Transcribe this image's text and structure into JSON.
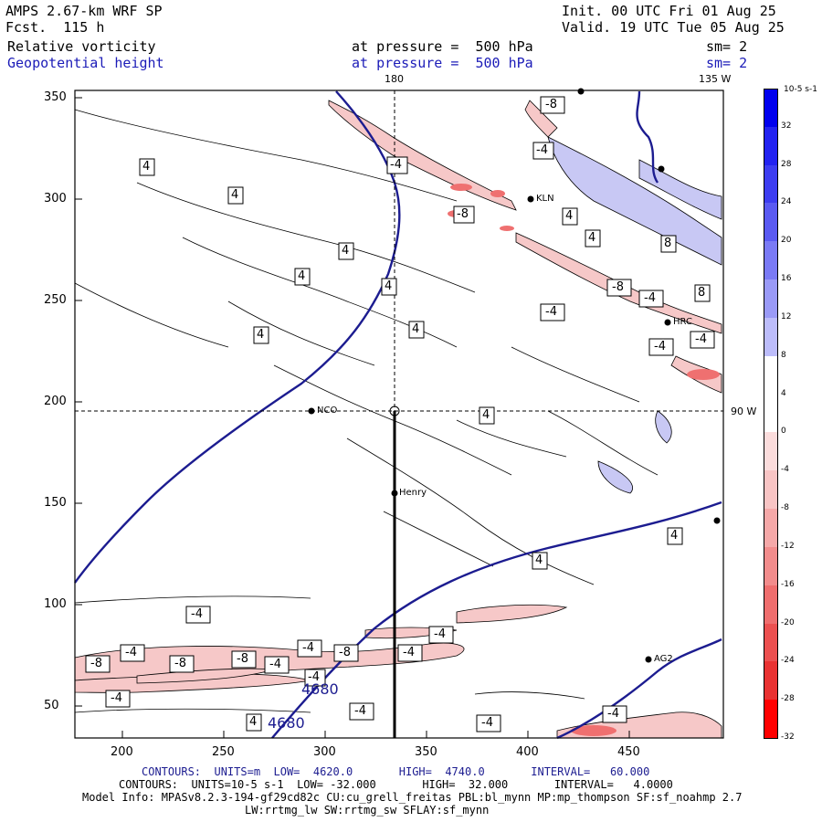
{
  "header": {
    "model": "AMPS 2.67-km WRF SP",
    "fcst": "Fcst.  115 h",
    "init": "Init. 00 UTC Fri 01 Aug 25",
    "valid": "Valid. 19 UTC Tue 05 Aug 25",
    "field1": "Relative vorticity",
    "field2": "Geopotential height",
    "press1": "at pressure =  500 hPa",
    "press2": "at pressure =  500 hPa",
    "sm1": "sm= 2",
    "sm2": "sm= 2"
  },
  "map_labels": {
    "lon_180": "180",
    "lon_135w": "135 W",
    "lon_90w": "90 W",
    "x_ticks": [
      "200",
      "250",
      "300",
      "350",
      "400",
      "450"
    ],
    "y_ticks": [
      "350",
      "300",
      "250",
      "200",
      "150",
      "100",
      "50"
    ],
    "stations": [
      "KLN",
      "HRC",
      "NCO",
      "Henry",
      "AG2"
    ],
    "height_labels": [
      "4680",
      "4680"
    ],
    "vort_labels": [
      "-8",
      "-4",
      "4",
      "8"
    ]
  },
  "colorbar": {
    "unit": "10-5 s-1",
    "ticks": [
      "32",
      "28",
      "24",
      "20",
      "16",
      "12",
      "8",
      "4",
      "0",
      "-4",
      "-8",
      "-12",
      "-16",
      "-20",
      "-24",
      "-28",
      "-32"
    ],
    "colors": [
      "#0000ee",
      "#2323f0",
      "#3d3df0",
      "#5a5af2",
      "#7a7af5",
      "#9a9af7",
      "#bcbcfa",
      "#ffffff",
      "#ffffff",
      "#fbdcdc",
      "#f8c4c4",
      "#f5a8a8",
      "#f28c8c",
      "#ef6e6e",
      "#ec5050",
      "#e93232",
      "#ff0000"
    ]
  },
  "footer": {
    "contours1": "CONTOURS:  UNITS=m  LOW=  4620.0       HIGH=  4740.0       INTERVAL=   60.000",
    "contours2": "CONTOURS:  UNITS=10-5 s-1  LOW= -32.000       HIGH=  32.000       INTERVAL=   4.0000",
    "model_info": "Model Info: MPASv8.2.3-194-gf29cd82c CU:cu_grell_freitas PBL:bl_mynn MP:mp_thompson SF:sf_noahmp 2.7",
    "model_info2": "LW:rrtmg_lw SW:rrtmg_sw SFLAY:sf_mynn"
  }
}
